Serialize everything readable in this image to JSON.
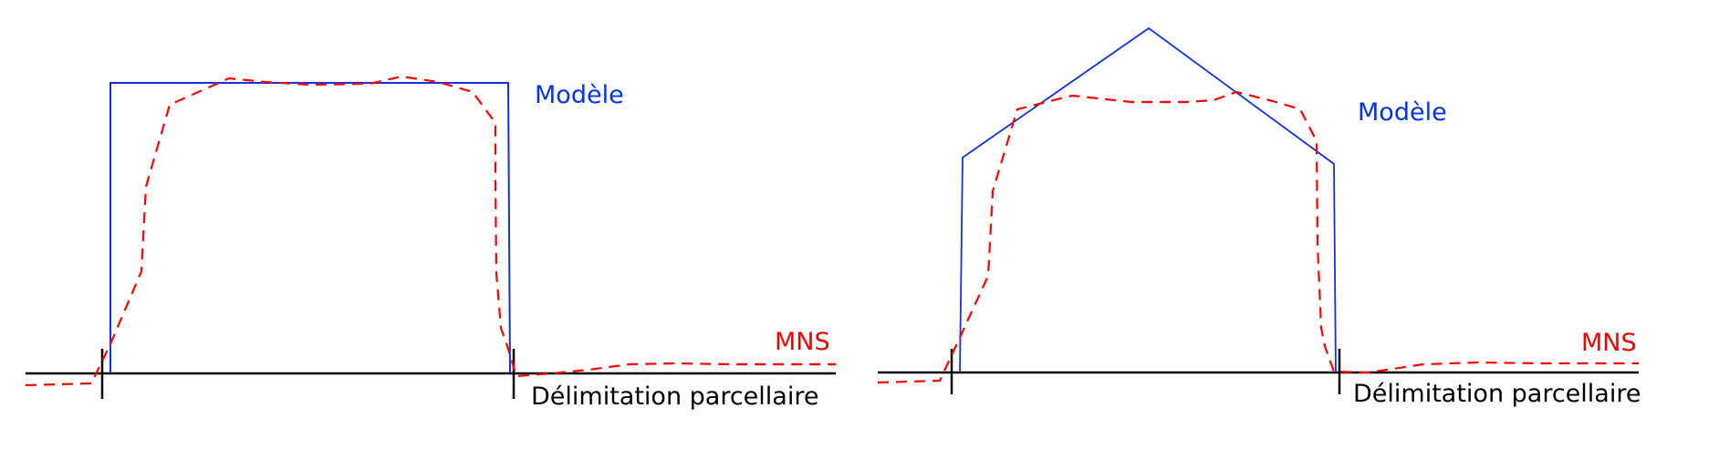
{
  "labels": {
    "model": "Modèle",
    "mns": "MNS",
    "parcel_boundary": "Délimitation parcellaire"
  },
  "colors": {
    "model": "#1133dd",
    "mns": "#ff0000",
    "ground": "#000000"
  },
  "panels": [
    {
      "model_shape": "flat-roof",
      "roof_type": "flat"
    },
    {
      "model_shape": "gable-roof",
      "roof_type": "gable"
    }
  ]
}
